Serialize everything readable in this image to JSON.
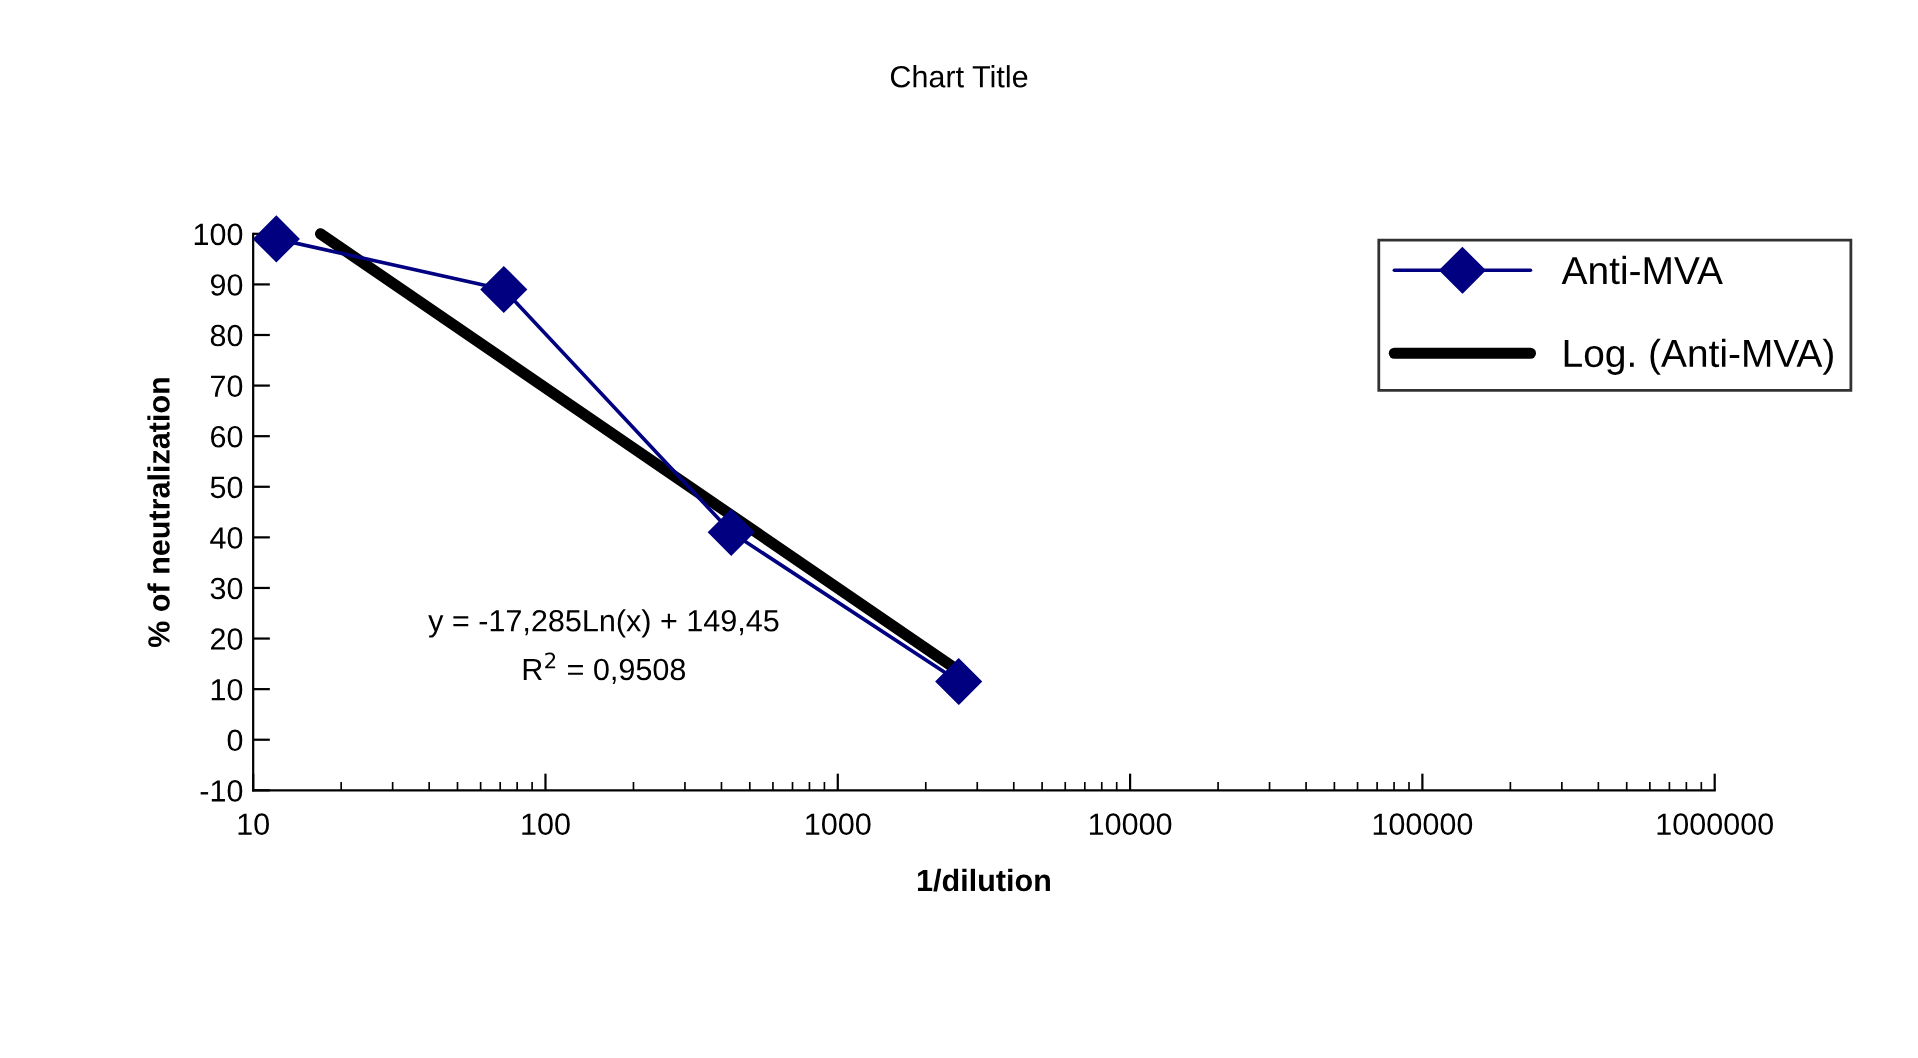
{
  "chart_data": {
    "type": "line",
    "title": "Chart Title",
    "xlabel": "1/dilution",
    "ylabel": "% of neutralization",
    "log": "x",
    "xlim": [
      10,
      1000000
    ],
    "xticks": [
      10,
      100,
      1000,
      10000,
      100000,
      1000000
    ],
    "ylim": [
      -10,
      100
    ],
    "yticks": [
      -10,
      0,
      10,
      20,
      30,
      40,
      50,
      60,
      70,
      80,
      90,
      100
    ],
    "grid": false,
    "legend": "right",
    "series": [
      {
        "name": "Anti-MVA",
        "color": "#000080",
        "marker": "diamond",
        "x": [
          12,
          72,
          432,
          2592
        ],
        "values": [
          99,
          89,
          41,
          11.5
        ]
      },
      {
        "name": "Log. (Anti-MVA)",
        "color": "#000000",
        "marker": "none",
        "x": [
          17,
          2592
        ],
        "values": [
          100,
          13.6
        ]
      }
    ],
    "annotations": [
      "y = -17,285Ln(x) + 149,45",
      "R$^{2}$ = 0,9508"
    ]
  }
}
